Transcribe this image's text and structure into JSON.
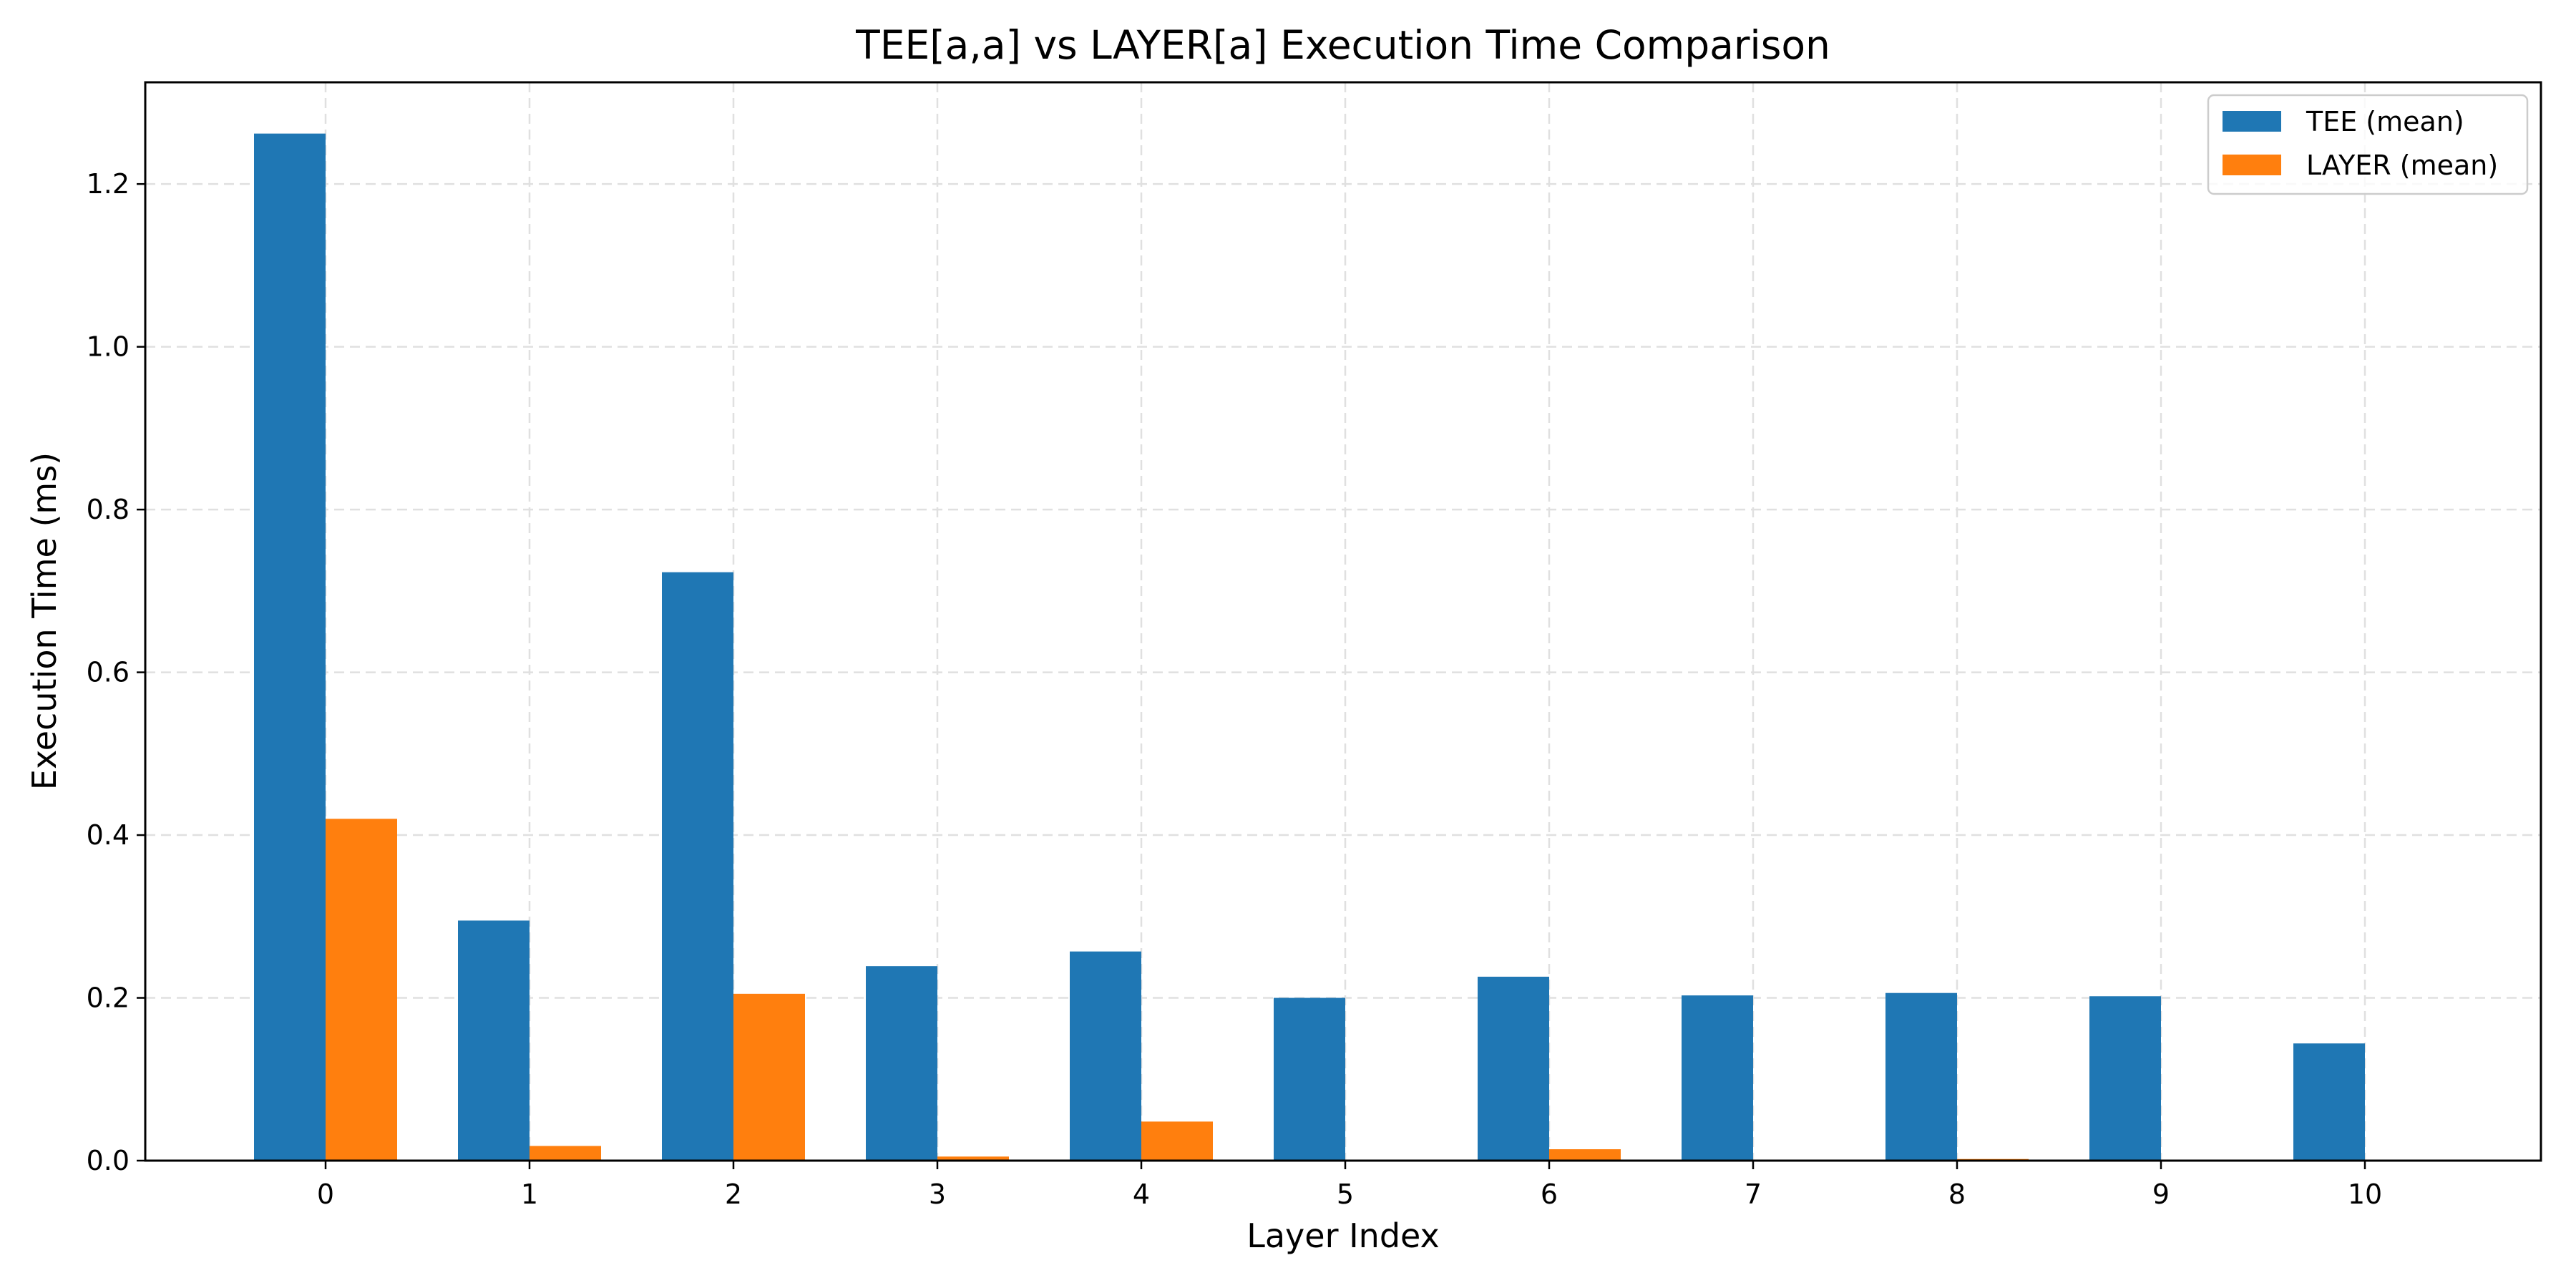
{
  "chart_data": {
    "type": "bar",
    "title": "TEE[a,a] vs LAYER[a] Execution Time Comparison",
    "xlabel": "Layer Index",
    "ylabel": "Execution Time (ms)",
    "categories": [
      "0",
      "1",
      "2",
      "3",
      "4",
      "5",
      "6",
      "7",
      "8",
      "9",
      "10"
    ],
    "series": [
      {
        "name": "TEE (mean)",
        "color": "#1f77b4",
        "values": [
          1.262,
          0.295,
          0.723,
          0.239,
          0.257,
          0.2,
          0.226,
          0.203,
          0.206,
          0.202,
          0.144
        ]
      },
      {
        "name": "LAYER (mean)",
        "color": "#ff7f0e",
        "values": [
          0.42,
          0.018,
          0.205,
          0.005,
          0.048,
          0.0,
          0.014,
          0.0,
          0.002,
          0.0,
          0.0
        ]
      }
    ],
    "ylim": [
      0,
      1.325
    ],
    "yticks": [
      "0.0",
      "0.2",
      "0.4",
      "0.6",
      "0.8",
      "1.0",
      "1.2"
    ],
    "grid": true,
    "legend_position": "top-right"
  }
}
